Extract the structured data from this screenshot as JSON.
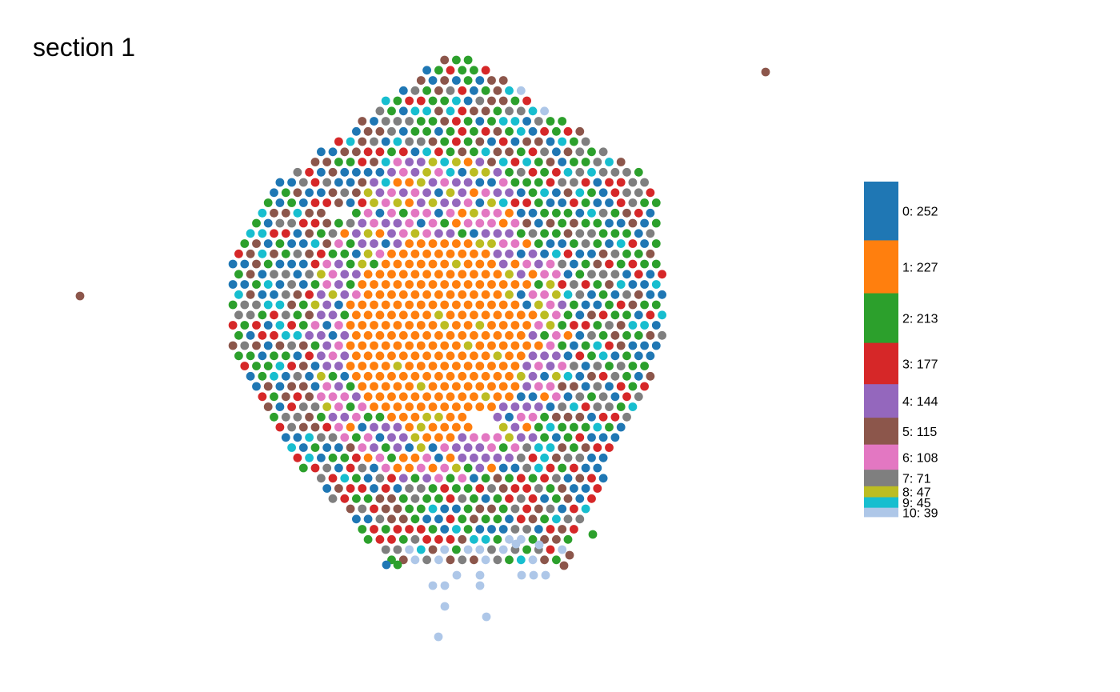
{
  "chart_data": {
    "type": "scatter",
    "title": "section 1",
    "xlabel": "",
    "ylabel": "",
    "grid": false,
    "legend_placement": "right",
    "clusters": [
      {
        "id": 0,
        "count": 252,
        "label": "0: 252",
        "color": "#1f77b4"
      },
      {
        "id": 1,
        "count": 227,
        "label": "1: 227",
        "color": "#ff7f0e"
      },
      {
        "id": 2,
        "count": 213,
        "label": "2: 213",
        "color": "#2ca02c"
      },
      {
        "id": 3,
        "count": 177,
        "label": "3: 177",
        "color": "#d62728"
      },
      {
        "id": 4,
        "count": 144,
        "label": "4: 144",
        "color": "#9467bd"
      },
      {
        "id": 5,
        "count": 115,
        "label": "5: 115",
        "color": "#8c564b"
      },
      {
        "id": 6,
        "count": 108,
        "label": "6: 108",
        "color": "#e377c2"
      },
      {
        "id": 7,
        "count": 71,
        "label": "7: 71",
        "color": "#7f7f7f"
      },
      {
        "id": 8,
        "count": 47,
        "label": "8: 47",
        "color": "#bcbd22"
      },
      {
        "id": 9,
        "count": 45,
        "label": "9: 45",
        "color": "#17becf"
      },
      {
        "id": 10,
        "count": 39,
        "label": "10: 39",
        "color": "#aec7e8"
      }
    ]
  }
}
